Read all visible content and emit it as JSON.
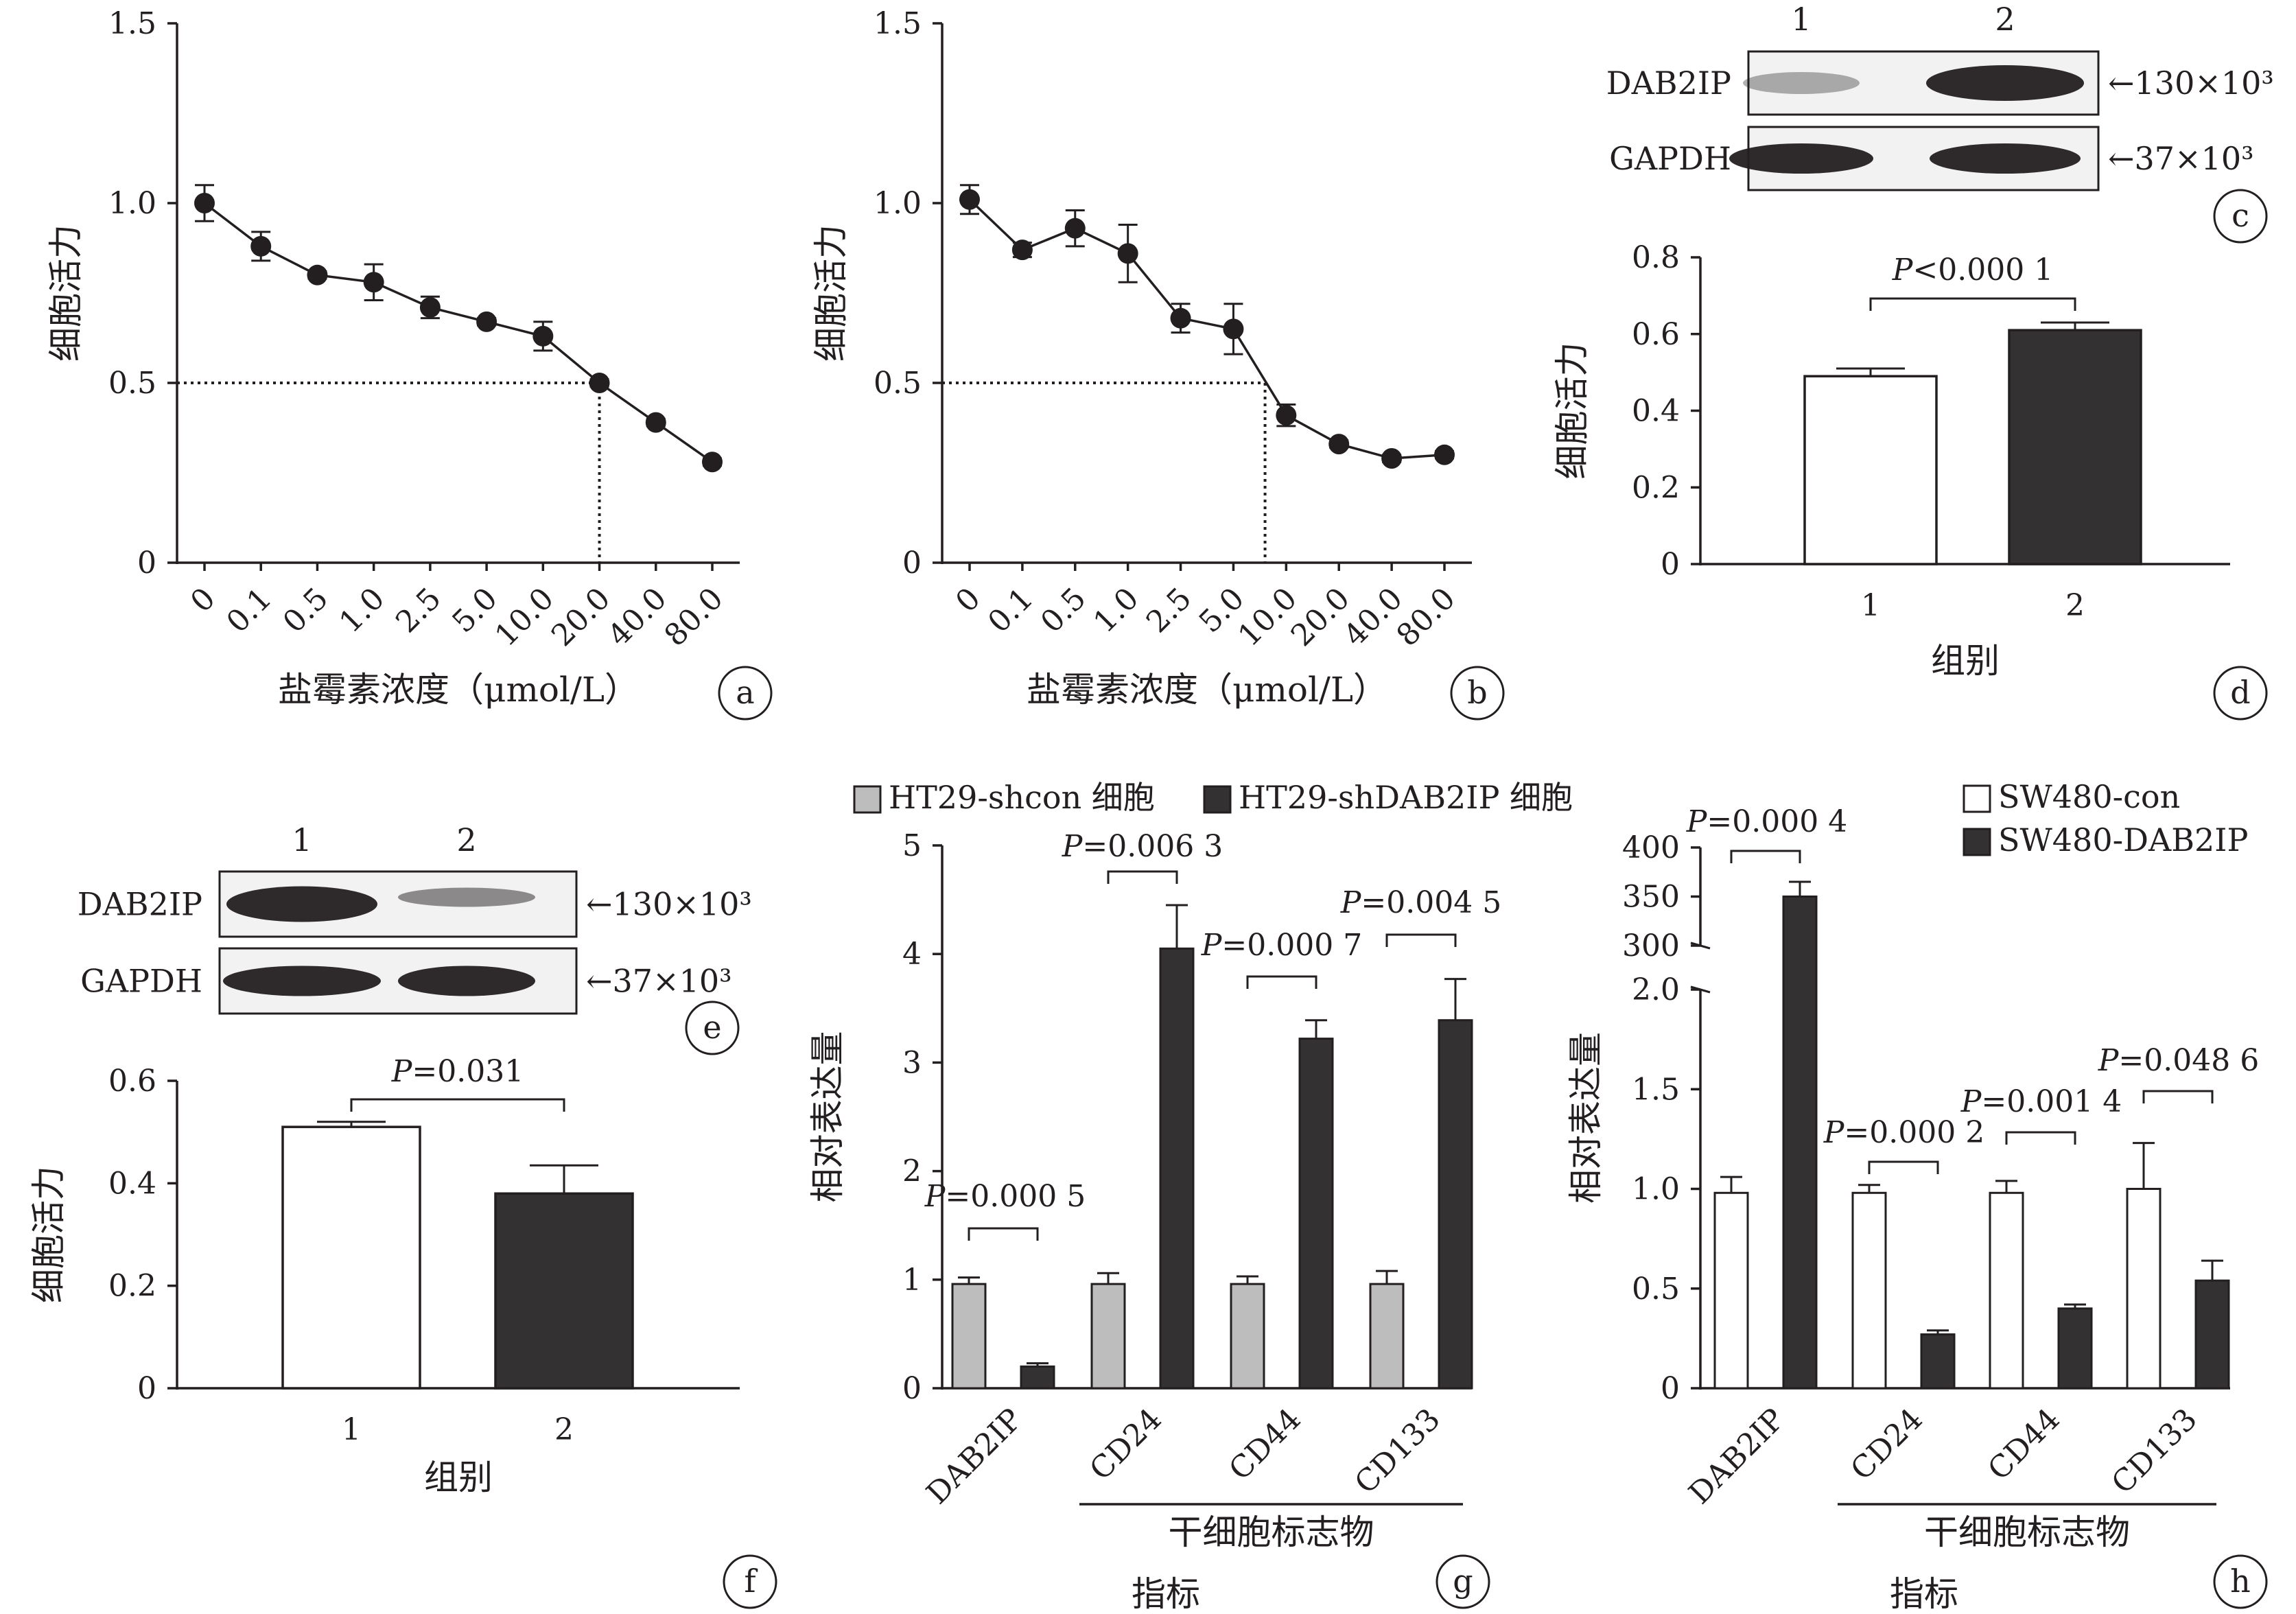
{
  "panels": {
    "a": {
      "letter": "a",
      "chart_data": {
        "type": "line",
        "categories": [
          "0",
          "0.1",
          "0.5",
          "1.0",
          "2.5",
          "5.0",
          "10.0",
          "20.0",
          "40.0",
          "80.0"
        ],
        "values": [
          1.0,
          0.88,
          0.8,
          0.78,
          0.71,
          0.67,
          0.63,
          0.5,
          0.39,
          0.28
        ],
        "errors": [
          0.05,
          0.04,
          0.01,
          0.05,
          0.03,
          0.01,
          0.04,
          0.01,
          0.01,
          0.01
        ],
        "ylim": [
          0,
          1.5
        ],
        "yticks": [
          "0",
          "0.5",
          "1.0",
          "1.5"
        ],
        "ylabel": "细胞活力",
        "xlabel": "盐霉素浓度（μmol/L）",
        "ic50_marker": {
          "y": 0.5,
          "x_index": 7
        }
      }
    },
    "b": {
      "letter": "b",
      "chart_data": {
        "type": "line",
        "categories": [
          "0",
          "0.1",
          "0.5",
          "1.0",
          "2.5",
          "5.0",
          "10.0",
          "20.0",
          "40.0",
          "80.0"
        ],
        "values": [
          1.01,
          0.87,
          0.93,
          0.86,
          0.68,
          0.65,
          0.41,
          0.33,
          0.29,
          0.3
        ],
        "errors": [
          0.04,
          0.02,
          0.05,
          0.08,
          0.04,
          0.07,
          0.03,
          0.01,
          0.01,
          0.01
        ],
        "ylim": [
          0,
          1.5
        ],
        "yticks": [
          "0",
          "0.5",
          "1.0",
          "1.5"
        ],
        "ylabel": "细胞活力",
        "xlabel": "盐霉素浓度（μmol/L）",
        "ic50_marker": {
          "y": 0.5,
          "x_index": 5.6
        }
      }
    },
    "c": {
      "letter": "c",
      "lanes": [
        "1",
        "2"
      ],
      "rows": [
        {
          "protein": "DAB2IP",
          "marker": "←130×10³"
        },
        {
          "protein": "GAPDH",
          "marker": "←37×10³"
        }
      ]
    },
    "d": {
      "letter": "d",
      "chart_data": {
        "type": "bar",
        "categories": [
          "1",
          "2"
        ],
        "values": [
          0.49,
          0.61
        ],
        "errors": [
          0.02,
          0.02
        ],
        "fills": [
          "#ffffff",
          "#333132"
        ],
        "ylim": [
          0,
          0.8
        ],
        "yticks": [
          "0",
          "0.2",
          "0.4",
          "0.6",
          "0.8"
        ],
        "ylabel": "细胞活力",
        "xlabel": "组别",
        "p_label": "P<0.000 1"
      }
    },
    "e": {
      "letter": "e",
      "lanes": [
        "1",
        "2"
      ],
      "rows": [
        {
          "protein": "DAB2IP",
          "marker": "←130×10³"
        },
        {
          "protein": "GAPDH",
          "marker": "←37×10³"
        }
      ]
    },
    "f": {
      "letter": "f",
      "chart_data": {
        "type": "bar",
        "categories": [
          "1",
          "2"
        ],
        "values": [
          0.51,
          0.38
        ],
        "errors": [
          0.01,
          0.055
        ],
        "fills": [
          "#ffffff",
          "#333132"
        ],
        "ylim": [
          0,
          0.6
        ],
        "yticks": [
          "0",
          "0.2",
          "0.4",
          "0.6"
        ],
        "ylabel": "细胞活力",
        "xlabel": "组别",
        "p_label": "P=0.031"
      }
    },
    "g": {
      "letter": "g",
      "chart_data": {
        "type": "bar",
        "categories": [
          "DAB2IP",
          "CD24",
          "CD44",
          "CD133"
        ],
        "series": [
          {
            "name": "HT29-shcon 细胞",
            "color": "#bdbdbd",
            "values": [
              0.96,
              0.96,
              0.96,
              0.96
            ],
            "errors": [
              0.06,
              0.1,
              0.07,
              0.12
            ]
          },
          {
            "name": "HT29-shDAB2IP 细胞",
            "color": "#333132",
            "values": [
              0.2,
              4.05,
              3.22,
              3.39
            ],
            "errors": [
              0.03,
              0.4,
              0.17,
              0.38
            ]
          }
        ],
        "p_labels": [
          "P=0.000 5",
          "P=0.006 3",
          "P=0.000 7",
          "P=0.004 5"
        ],
        "ylim": [
          0,
          5
        ],
        "yticks": [
          "0",
          "1",
          "2",
          "3",
          "4",
          "5"
        ],
        "ylabel": "相对表达量",
        "group_label": "干细胞标志物",
        "xlabel": "指标"
      }
    },
    "h": {
      "letter": "h",
      "chart_data": {
        "type": "bar",
        "categories": [
          "DAB2IP",
          "CD24",
          "CD44",
          "CD133"
        ],
        "series": [
          {
            "name": "SW480-con",
            "color": "#ffffff",
            "values": [
              0.98,
              0.98,
              0.98,
              1.0
            ],
            "errors": [
              0.08,
              0.04,
              0.06,
              0.23
            ]
          },
          {
            "name": "SW480-DAB2IP",
            "color": "#333132",
            "values": [
              350,
              0.27,
              0.4,
              0.54
            ],
            "errors": [
              15,
              0.02,
              0.02,
              0.1
            ]
          }
        ],
        "p_labels": [
          "P=0.000 4",
          "P=0.000 2",
          "P=0.001 4",
          "P=0.048 6"
        ],
        "ylim": [
          0,
          400
        ],
        "axis_break": [
          2.0,
          300
        ],
        "yticks": [
          "0",
          "0.5",
          "1.0",
          "1.5",
          "2.0",
          "300",
          "350",
          "400"
        ],
        "ylabel": "相对表达量",
        "group_label": "干细胞标志物",
        "xlabel": "指标"
      }
    }
  }
}
